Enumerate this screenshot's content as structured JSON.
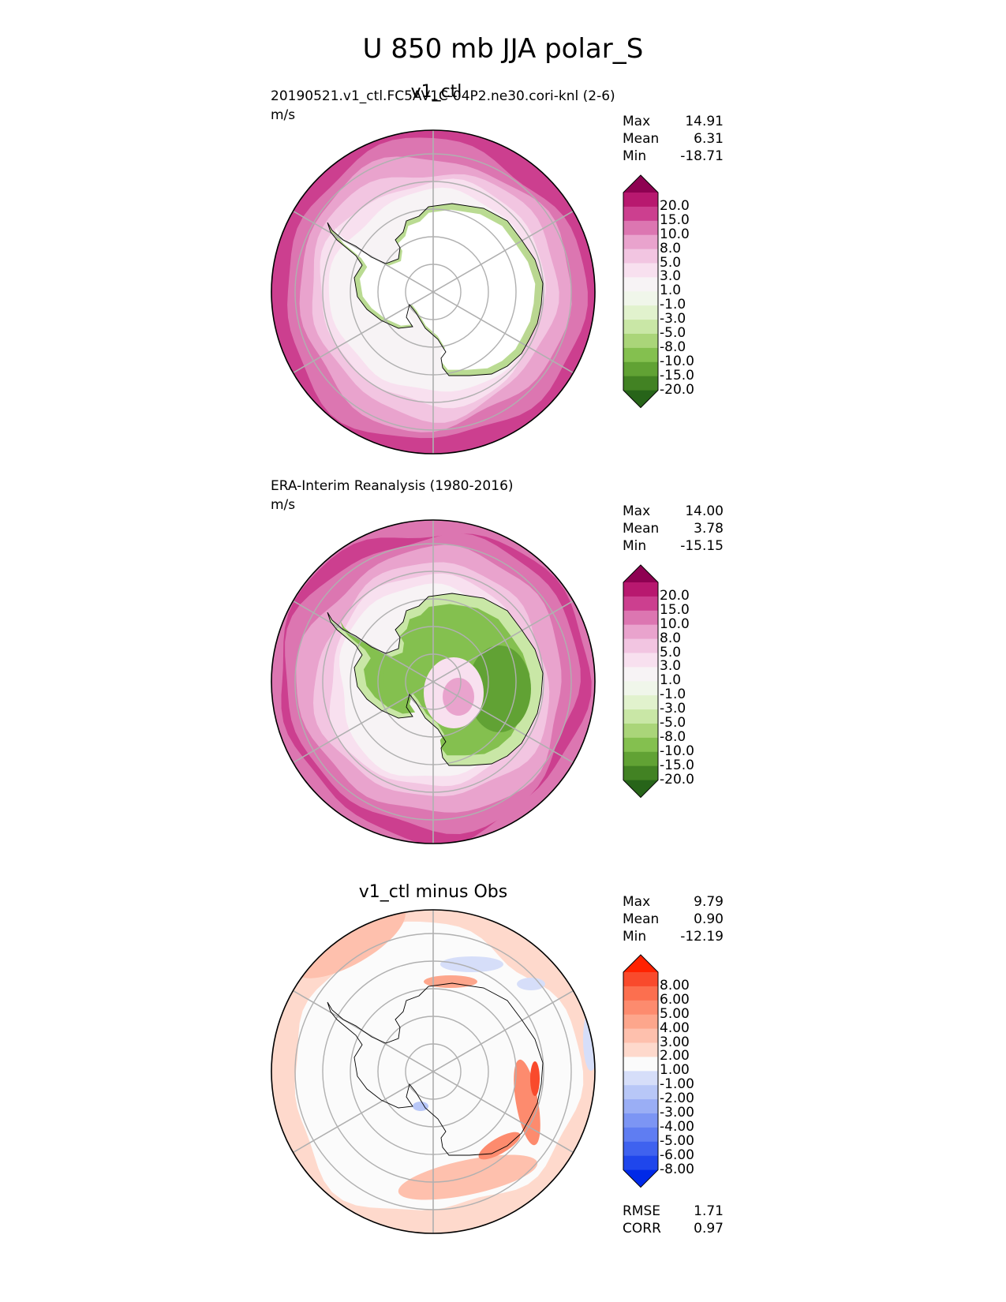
{
  "title": "U 850 mb JJA polar_S",
  "panels": [
    {
      "center_title": "v1_ctl",
      "subtitle": "20190521.v1_ctl.FC5AV1C-04P2.ne30.cori-knl (2-6)",
      "units": "m/s",
      "stats": [
        {
          "label": "Max",
          "value": "14.91"
        },
        {
          "label": "Mean",
          "value": "6.31"
        },
        {
          "label": "Min",
          "value": "-18.71"
        }
      ]
    },
    {
      "center_title": "",
      "subtitle": "ERA-Interim Reanalysis (1980-2016)",
      "units": "m/s",
      "stats": [
        {
          "label": "Max",
          "value": "14.00"
        },
        {
          "label": "Mean",
          "value": "3.78"
        },
        {
          "label": "Min",
          "value": "-15.15"
        }
      ]
    },
    {
      "center_title": "v1_ctl minus Obs",
      "subtitle": "",
      "units": "",
      "stats": [
        {
          "label": "Max",
          "value": "9.79"
        },
        {
          "label": "Mean",
          "value": "0.90"
        },
        {
          "label": "Min",
          "value": "-12.19"
        }
      ],
      "metrics": [
        {
          "label": "RMSE",
          "value": "1.71"
        },
        {
          "label": "CORR",
          "value": "0.97"
        }
      ]
    }
  ],
  "colorbars": {
    "field": {
      "ticks": [
        "20.0",
        "15.0",
        "10.0",
        "8.0",
        "5.0",
        "3.0",
        "1.0",
        "-1.0",
        "-3.0",
        "-5.0",
        "-8.0",
        "-10.0",
        "-15.0",
        "-20.0"
      ],
      "colors": [
        "#8e0152",
        "#b8186f",
        "#cc3f8f",
        "#dc76b1",
        "#e9a3cd",
        "#f2c5e1",
        "#f8e0ef",
        "#f7f3f5",
        "#f0f6ea",
        "#e1f2cd",
        "#c9e7a6",
        "#aad579",
        "#84c04f",
        "#61a234",
        "#428223",
        "#276419"
      ]
    },
    "diff": {
      "ticks": [
        "8.00",
        "6.00",
        "5.00",
        "4.00",
        "3.00",
        "2.00",
        "1.00",
        "-1.00",
        "-2.00",
        "-3.00",
        "-4.00",
        "-5.00",
        "-6.00",
        "-8.00"
      ],
      "colors": [
        "#ff2200",
        "#f94a2c",
        "#fc6f4f",
        "#fd8b6e",
        "#fda68c",
        "#fec0ad",
        "#fed9cc",
        "#fbfbfb",
        "#d6def9",
        "#b8c7f7",
        "#9aaef5",
        "#7c95f4",
        "#5f7df2",
        "#3f62ef",
        "#1f46ec",
        "#0029e8"
      ]
    }
  },
  "chart_data": [
    {
      "type": "heatmap",
      "projection": "south-polar-stereographic",
      "title": "v1_ctl",
      "subtitle": "20190521.v1_ctl.FC5AV1C-04P2.ne30.cori-knl (2-6)",
      "units": "m/s",
      "max": 14.91,
      "mean": 6.31,
      "min": -18.71,
      "contour_levels": [
        -20,
        -15,
        -10,
        -8,
        -5,
        -3,
        -1,
        1,
        3,
        5,
        8,
        10,
        15,
        20
      ],
      "colormap": "PiYG"
    },
    {
      "type": "heatmap",
      "projection": "south-polar-stereographic",
      "title": "ERA-Interim Reanalysis (1980-2016)",
      "units": "m/s",
      "max": 14.0,
      "mean": 3.78,
      "min": -15.15,
      "contour_levels": [
        -20,
        -15,
        -10,
        -8,
        -5,
        -3,
        -1,
        1,
        3,
        5,
        8,
        10,
        15,
        20
      ],
      "colormap": "PiYG"
    },
    {
      "type": "heatmap",
      "projection": "south-polar-stereographic",
      "title": "v1_ctl minus Obs",
      "max": 9.79,
      "mean": 0.9,
      "min": -12.19,
      "rmse": 1.71,
      "corr": 0.97,
      "contour_levels": [
        -8,
        -6,
        -5,
        -4,
        -3,
        -2,
        -1,
        1,
        2,
        3,
        4,
        5,
        6,
        8
      ],
      "colormap": "bwr"
    }
  ]
}
